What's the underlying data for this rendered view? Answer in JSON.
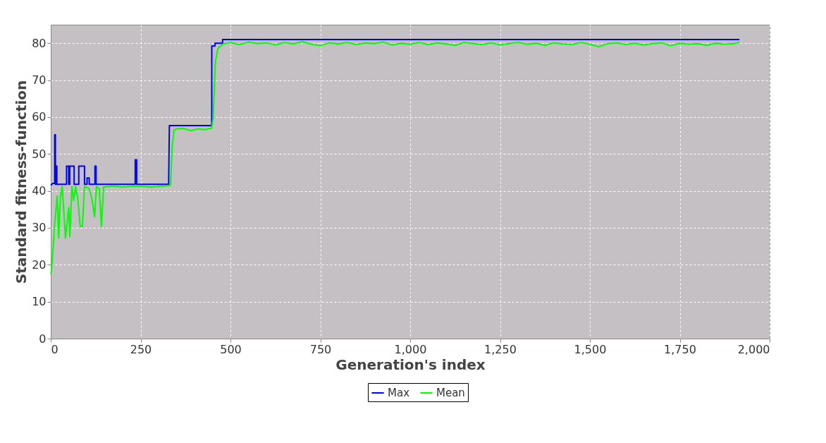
{
  "chart_data": {
    "type": "line",
    "xlabel": "Generation's index",
    "ylabel": "Standard fitness-function",
    "xlim": [
      0,
      2000
    ],
    "xticks": [
      0,
      250,
      500,
      750,
      {
        "value": 1000,
        "label": "1,000"
      },
      {
        "value": 1250,
        "label": "1,250"
      },
      {
        "value": 1500,
        "label": "1,500"
      },
      {
        "value": 1750,
        "label": "1,750"
      },
      {
        "value": 2000,
        "label": "2,000"
      }
    ],
    "ylim": [
      0,
      85
    ],
    "yticks": [
      0,
      10,
      20,
      30,
      40,
      50,
      60,
      70,
      80
    ],
    "grid": true,
    "legend": "bottom",
    "marker": "none",
    "line_style": "solid",
    "series": [
      {
        "name": "Max",
        "color": "#0000ff",
        "x": [
          0,
          5,
          8,
          11,
          11,
          13,
          13,
          15,
          15,
          17,
          17,
          44,
          44,
          50,
          50,
          53,
          53,
          65,
          65,
          78,
          78,
          94,
          94,
          101,
          101,
          107,
          107,
          123,
          123,
          126,
          126,
          235,
          235,
          239,
          239,
          328,
          330,
          448,
          448,
          457,
          457,
          478,
          478,
          1916
        ],
        "values": [
          41.5,
          42,
          42,
          42,
          55.2,
          55.2,
          41.8,
          41.8,
          46.7,
          46.7,
          41.8,
          41.8,
          46.7,
          46.7,
          41.8,
          41.8,
          46.7,
          46.7,
          41.8,
          41.8,
          46.7,
          46.7,
          41.8,
          41.8,
          43.5,
          43.5,
          41.8,
          41.8,
          46.7,
          46.7,
          41.8,
          41.8,
          48.4,
          48.4,
          41.8,
          41.8,
          57.7,
          57.7,
          79.2,
          79.2,
          80,
          80,
          81,
          81
        ]
      },
      {
        "name": "Mean",
        "color": "#00ff00",
        "x": [
          0,
          2,
          6,
          10,
          18,
          22,
          27,
          32,
          41,
          50,
          53,
          59,
          64,
          69,
          75,
          82,
          88,
          94,
          107,
          114,
          122,
          127,
          135,
          141,
          147,
          160,
          180,
          200,
          220,
          240,
          260,
          280,
          300,
          320,
          333,
          338,
          343,
          350,
          370,
          390,
          410,
          430,
          448,
          452,
          458,
          465,
          472,
          480,
          500,
          525,
          550,
          575,
          600,
          625,
          650,
          675,
          700,
          725,
          750,
          775,
          800,
          825,
          850,
          875,
          900,
          925,
          950,
          975,
          1000,
          1025,
          1050,
          1075,
          1100,
          1125,
          1150,
          1175,
          1200,
          1225,
          1250,
          1275,
          1300,
          1325,
          1350,
          1375,
          1400,
          1425,
          1450,
          1475,
          1500,
          1525,
          1550,
          1575,
          1600,
          1625,
          1650,
          1675,
          1700,
          1725,
          1750,
          1775,
          1800,
          1825,
          1850,
          1875,
          1900,
          1916
        ],
        "values": [
          17.5,
          18.3,
          24.1,
          29.8,
          38.7,
          27.2,
          38.7,
          41.2,
          27.2,
          35.5,
          27.6,
          41.2,
          37.4,
          41.2,
          38,
          30.4,
          30.4,
          41.2,
          40.6,
          38,
          33,
          41.2,
          40.6,
          30.4,
          41,
          41.2,
          41.3,
          41,
          41.2,
          41.3,
          41.2,
          41,
          41.2,
          41.3,
          41.5,
          52,
          56.4,
          56.8,
          56.9,
          56.3,
          56.8,
          56.6,
          57,
          60,
          75,
          78.5,
          79.2,
          79.8,
          80.2,
          79.6,
          80.3,
          79.9,
          80.1,
          79.5,
          80.2,
          79.8,
          80.4,
          79.7,
          79.3,
          80.1,
          79.8,
          80.2,
          79.6,
          80.1,
          79.9,
          80.3,
          79.5,
          80,
          79.7,
          80.2,
          79.6,
          80.1,
          79.8,
          79.4,
          80.2,
          79.9,
          79.6,
          80.1,
          79.5,
          79.9,
          80.2,
          79.7,
          80,
          79.4,
          80.1,
          79.8,
          79.6,
          80.2,
          79.7,
          79,
          79.9,
          80.1,
          79.6,
          80,
          79.5,
          79.9,
          80.1,
          79.3,
          80,
          79.7,
          79.9,
          79.4,
          80,
          79.7,
          79.9,
          80.2
        ]
      }
    ]
  }
}
